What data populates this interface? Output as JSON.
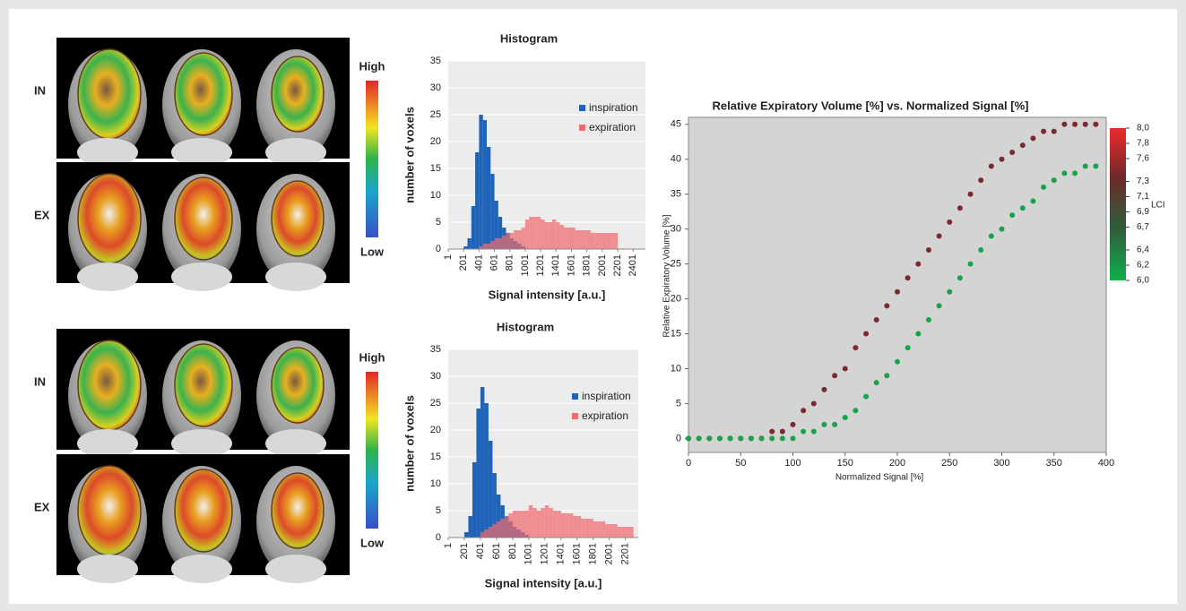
{
  "image_panels": [
    {
      "rows": [
        "IN",
        "EX"
      ],
      "scale_high": "High",
      "scale_low": "Low"
    },
    {
      "rows": [
        "IN",
        "EX"
      ],
      "scale_high": "High",
      "scale_low": "Low"
    }
  ],
  "chart_data": [
    {
      "type": "histogram",
      "title": "Histogram",
      "x_label": "Signal intensity [a.u.]",
      "y_label": "number of voxels",
      "bins": [
        201,
        251,
        301,
        351,
        401,
        451,
        501,
        551,
        601,
        651,
        701,
        751,
        801,
        851,
        901,
        951,
        1001,
        1051,
        1101,
        1151,
        1201,
        1251,
        1301,
        1351,
        1401,
        1451,
        1501,
        1551,
        1601,
        1651,
        1701,
        1751,
        1801,
        1851,
        1901,
        1951,
        2001,
        2051,
        2101,
        2151,
        2201
      ],
      "series": [
        {
          "name": "inspiration",
          "color": "#1f64b8",
          "values": [
            0.5,
            2,
            8,
            18,
            25,
            24,
            19,
            14,
            9,
            6,
            4,
            3,
            2,
            1.5,
            1,
            0.5,
            0,
            0,
            0,
            0,
            0,
            0,
            0,
            0,
            0,
            0,
            0,
            0,
            0,
            0,
            0,
            0,
            0,
            0,
            0,
            0,
            0,
            0,
            0,
            0
          ]
        },
        {
          "name": "expiration",
          "color": "#f06a6e",
          "values": [
            0,
            0,
            0,
            0,
            0.5,
            1,
            1,
            1.5,
            2,
            2,
            2.5,
            3,
            3,
            3.5,
            3.5,
            4,
            5.5,
            6,
            6,
            6,
            5.5,
            5,
            5,
            5.5,
            5,
            4.5,
            4,
            4,
            4,
            3.5,
            3.5,
            3.5,
            3.5,
            3,
            3,
            3,
            3,
            3,
            3,
            3
          ]
        }
      ],
      "xlim": [
        1,
        2561
      ],
      "xticks": [
        1,
        201,
        401,
        601,
        801,
        1001,
        1201,
        1401,
        1601,
        1801,
        2001,
        2201,
        2401
      ],
      "ylim": [
        0,
        35
      ],
      "yticks": [
        0,
        5,
        10,
        15,
        20,
        25,
        30,
        35
      ],
      "grid": true,
      "legend": "upper right"
    },
    {
      "type": "histogram",
      "title": "Histogram",
      "x_label": "Signal intensity [a.u.]",
      "y_label": "number of voxels",
      "bins": [
        201,
        251,
        301,
        351,
        401,
        451,
        501,
        551,
        601,
        651,
        701,
        751,
        801,
        851,
        901,
        951,
        1001,
        1051,
        1101,
        1151,
        1201,
        1251,
        1301,
        1351,
        1401,
        1451,
        1501,
        1551,
        1601,
        1651,
        1701,
        1751,
        1801,
        1851,
        1901,
        1951,
        2001,
        2051,
        2101,
        2151,
        2201,
        2251,
        2301
      ],
      "series": [
        {
          "name": "inspiration",
          "color": "#1f64b8",
          "values": [
            1,
            4,
            14,
            24,
            28,
            25,
            18,
            12,
            8,
            6,
            4,
            3,
            2,
            1.5,
            1,
            0.5,
            0,
            0,
            0,
            0,
            0,
            0,
            0,
            0,
            0,
            0,
            0,
            0,
            0,
            0,
            0,
            0,
            0,
            0,
            0,
            0,
            0,
            0,
            0,
            0,
            0,
            0
          ]
        },
        {
          "name": "expiration",
          "color": "#f06a6e",
          "values": [
            0,
            0,
            0,
            0,
            1,
            1.5,
            2,
            2.5,
            3,
            3.5,
            4,
            4.5,
            5,
            5,
            5,
            5,
            6,
            5.5,
            5,
            5.5,
            6,
            5.5,
            5,
            5,
            4.5,
            4.5,
            4.5,
            4,
            4,
            3.5,
            3.5,
            3.5,
            3,
            3,
            3,
            2.5,
            2.5,
            2.5,
            2,
            2,
            2,
            2
          ]
        }
      ],
      "xlim": [
        1,
        2361
      ],
      "xticks": [
        1,
        201,
        401,
        601,
        801,
        1001,
        1201,
        1401,
        1601,
        1801,
        2001,
        2201
      ],
      "ylim": [
        0,
        35
      ],
      "yticks": [
        0,
        5,
        10,
        15,
        20,
        25,
        30,
        35
      ],
      "grid": true,
      "legend": "upper right"
    },
    {
      "type": "scatter",
      "title": "Relative Expiratory Volume [%] vs. Normalized Signal [%]",
      "x_label": "Normalized Signal [%]",
      "y_label": "Relative Expiratory Volume [%]",
      "series": [
        {
          "color": "#7a2a2e",
          "x": [
            0,
            10,
            20,
            30,
            40,
            50,
            60,
            70,
            80,
            90,
            100,
            110,
            120,
            130,
            140,
            150,
            160,
            170,
            180,
            190,
            200,
            210,
            220,
            230,
            240,
            250,
            260,
            270,
            280,
            290,
            300,
            310,
            320,
            330,
            340,
            350,
            360,
            370,
            380,
            390
          ],
          "values": [
            0,
            0,
            0,
            0,
            0,
            0,
            0,
            0,
            1,
            1,
            2,
            4,
            5,
            7,
            9,
            10,
            13,
            15,
            17,
            19,
            21,
            23,
            25,
            27,
            29,
            31,
            33,
            35,
            37,
            39,
            40,
            41,
            42,
            43,
            44,
            44,
            45,
            45,
            45,
            45
          ]
        },
        {
          "color": "#16a448",
          "x": [
            0,
            10,
            20,
            30,
            40,
            50,
            60,
            70,
            80,
            90,
            100,
            110,
            120,
            130,
            140,
            150,
            160,
            170,
            180,
            190,
            200,
            210,
            220,
            230,
            240,
            250,
            260,
            270,
            280,
            290,
            300,
            310,
            320,
            330,
            340,
            350,
            360,
            370,
            380,
            390
          ],
          "values": [
            0,
            0,
            0,
            0,
            0,
            0,
            0,
            0,
            0,
            0,
            0,
            1,
            1,
            2,
            2,
            3,
            4,
            6,
            8,
            9,
            11,
            13,
            15,
            17,
            19,
            21,
            23,
            25,
            27,
            29,
            30,
            32,
            33,
            34,
            36,
            37,
            38,
            38,
            39,
            39
          ]
        }
      ],
      "xlim": [
        0,
        400
      ],
      "xticks": [
        0,
        50,
        100,
        150,
        200,
        250,
        300,
        350,
        400
      ],
      "ylim": [
        -2,
        46
      ],
      "yticks": [
        0,
        5,
        10,
        15,
        20,
        25,
        30,
        35,
        40,
        45
      ],
      "colorbar": {
        "label": "LCI",
        "range": [
          6.0,
          8.0
        ],
        "colors": [
          "#0fb04a",
          "#2e5e3c",
          "#6a2a2c",
          "#ee2a2a"
        ],
        "ticks": [
          {
            "value": 8.0,
            "label": "8,0"
          },
          {
            "value": 7.8,
            "label": "7,8"
          },
          {
            "value": 7.6,
            "label": "7,6"
          },
          {
            "value": 7.3,
            "label": "7,3"
          },
          {
            "value": 7.1,
            "label": "7,1"
          },
          {
            "value": 6.9,
            "label": "6,9"
          },
          {
            "value": 6.7,
            "label": "6,7"
          },
          {
            "value": 6.4,
            "label": "6,4"
          },
          {
            "value": 6.2,
            "label": "6,2"
          },
          {
            "value": 6.0,
            "label": "6,0"
          }
        ]
      }
    }
  ]
}
